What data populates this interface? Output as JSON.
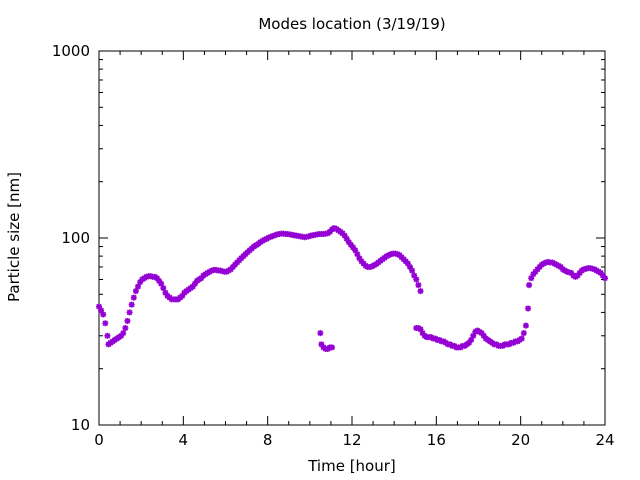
{
  "chart_data": {
    "type": "scatter",
    "title": "Modes location (3/19/19)",
    "xlabel": "Time [hour]",
    "ylabel": "Particle size [nm]",
    "xlim": [
      0,
      24
    ],
    "ylim": [
      10,
      1000
    ],
    "yscale": "log",
    "x_ticks": [
      0,
      4,
      8,
      12,
      16,
      20,
      24
    ],
    "y_ticks": [
      10,
      100,
      1000
    ],
    "grid": false,
    "marker": "star",
    "color": "#9400d3",
    "series": [
      {
        "points": [
          [
            0.0,
            43
          ],
          [
            0.1,
            41
          ],
          [
            0.2,
            39
          ],
          [
            0.3,
            35
          ],
          [
            0.4,
            30
          ],
          [
            0.45,
            27
          ],
          [
            0.55,
            27.5
          ],
          [
            0.65,
            28
          ],
          [
            0.75,
            28.5
          ],
          [
            0.85,
            29
          ],
          [
            0.95,
            29.5
          ],
          [
            1.05,
            30
          ],
          [
            1.15,
            31
          ],
          [
            1.25,
            33
          ],
          [
            1.35,
            36
          ],
          [
            1.45,
            40
          ],
          [
            1.55,
            44
          ],
          [
            1.65,
            48
          ],
          [
            1.75,
            52
          ],
          [
            1.85,
            55
          ],
          [
            1.95,
            58
          ],
          [
            2.05,
            60
          ],
          [
            2.15,
            61
          ],
          [
            2.25,
            62
          ],
          [
            2.35,
            62.5
          ],
          [
            2.45,
            62.5
          ],
          [
            2.55,
            62
          ],
          [
            2.65,
            62
          ],
          [
            2.75,
            61
          ],
          [
            2.85,
            59
          ],
          [
            2.95,
            57
          ],
          [
            3.05,
            54
          ],
          [
            3.15,
            51
          ],
          [
            3.25,
            49
          ],
          [
            3.35,
            48
          ],
          [
            3.45,
            47
          ],
          [
            3.55,
            47
          ],
          [
            3.65,
            47
          ],
          [
            3.75,
            47
          ],
          [
            3.85,
            48
          ],
          [
            3.95,
            49
          ],
          [
            4.05,
            51
          ],
          [
            4.15,
            52
          ],
          [
            4.25,
            53
          ],
          [
            4.35,
            54
          ],
          [
            4.45,
            55
          ],
          [
            4.55,
            57
          ],
          [
            4.65,
            59
          ],
          [
            4.75,
            60
          ],
          [
            4.85,
            61
          ],
          [
            4.95,
            63
          ],
          [
            5.05,
            64
          ],
          [
            5.15,
            65
          ],
          [
            5.25,
            66
          ],
          [
            5.35,
            67
          ],
          [
            5.45,
            67.5
          ],
          [
            5.55,
            67.5
          ],
          [
            5.65,
            67
          ],
          [
            5.75,
            67
          ],
          [
            5.85,
            66.5
          ],
          [
            5.95,
            66
          ],
          [
            6.05,
            66
          ],
          [
            6.15,
            67
          ],
          [
            6.25,
            68
          ],
          [
            6.35,
            70
          ],
          [
            6.45,
            72
          ],
          [
            6.55,
            74
          ],
          [
            6.65,
            76
          ],
          [
            6.75,
            78
          ],
          [
            6.85,
            80
          ],
          [
            6.95,
            82
          ],
          [
            7.05,
            84
          ],
          [
            7.15,
            86
          ],
          [
            7.25,
            88
          ],
          [
            7.35,
            90
          ],
          [
            7.45,
            91.5
          ],
          [
            7.55,
            93
          ],
          [
            7.65,
            95
          ],
          [
            7.75,
            96.5
          ],
          [
            7.85,
            98
          ],
          [
            7.95,
            99
          ],
          [
            8.05,
            100.5
          ],
          [
            8.15,
            101.5
          ],
          [
            8.25,
            102.5
          ],
          [
            8.35,
            103.5
          ],
          [
            8.45,
            104.5
          ],
          [
            8.55,
            105
          ],
          [
            8.65,
            105.5
          ],
          [
            8.75,
            105.5
          ],
          [
            8.85,
            105
          ],
          [
            8.95,
            105
          ],
          [
            9.05,
            104.5
          ],
          [
            9.15,
            104
          ],
          [
            9.25,
            103.5
          ],
          [
            9.35,
            103
          ],
          [
            9.45,
            102.5
          ],
          [
            9.55,
            102
          ],
          [
            9.65,
            101.5
          ],
          [
            9.75,
            101
          ],
          [
            9.85,
            101.5
          ],
          [
            9.95,
            102
          ],
          [
            10.05,
            103
          ],
          [
            10.15,
            103.5
          ],
          [
            10.25,
            104
          ],
          [
            10.35,
            104.5
          ],
          [
            10.45,
            105
          ],
          [
            10.55,
            105
          ],
          [
            10.65,
            105
          ],
          [
            10.75,
            105.5
          ],
          [
            10.85,
            106
          ],
          [
            10.95,
            108
          ],
          [
            11.05,
            111
          ],
          [
            11.15,
            113
          ],
          [
            11.25,
            112
          ],
          [
            11.35,
            110
          ],
          [
            11.45,
            108
          ],
          [
            11.55,
            106
          ],
          [
            11.65,
            103
          ],
          [
            11.75,
            99
          ],
          [
            11.85,
            95
          ],
          [
            11.95,
            92
          ],
          [
            12.05,
            89
          ],
          [
            12.15,
            86
          ],
          [
            12.25,
            82
          ],
          [
            12.35,
            78
          ],
          [
            12.45,
            75
          ],
          [
            12.55,
            73
          ],
          [
            12.65,
            71
          ],
          [
            12.75,
            70
          ],
          [
            12.85,
            70
          ],
          [
            12.95,
            70.5
          ],
          [
            13.05,
            71.5
          ],
          [
            13.15,
            72.5
          ],
          [
            13.25,
            74
          ],
          [
            13.35,
            75.5
          ],
          [
            13.45,
            77
          ],
          [
            13.55,
            78.5
          ],
          [
            13.65,
            80
          ],
          [
            13.75,
            81
          ],
          [
            13.85,
            82
          ],
          [
            13.95,
            82.5
          ],
          [
            14.05,
            82.5
          ],
          [
            14.15,
            82
          ],
          [
            14.25,
            81
          ],
          [
            14.35,
            79
          ],
          [
            14.45,
            77
          ],
          [
            14.55,
            75
          ],
          [
            14.65,
            73
          ],
          [
            14.75,
            70
          ],
          [
            14.85,
            67
          ],
          [
            14.95,
            63
          ],
          [
            15.05,
            60
          ],
          [
            15.15,
            56
          ],
          [
            15.25,
            52
          ],
          [
            10.5,
            31
          ],
          [
            10.55,
            27
          ],
          [
            10.65,
            26
          ],
          [
            10.75,
            25.5
          ],
          [
            10.85,
            25.5
          ],
          [
            10.95,
            26
          ],
          [
            11.05,
            26
          ],
          [
            15.05,
            33
          ],
          [
            15.15,
            33
          ],
          [
            15.25,
            32.5
          ],
          [
            15.35,
            31
          ],
          [
            15.45,
            30
          ],
          [
            15.55,
            29.5
          ],
          [
            15.65,
            29.5
          ],
          [
            15.75,
            29.5
          ],
          [
            15.85,
            29
          ],
          [
            15.95,
            29
          ],
          [
            16.05,
            28.5
          ],
          [
            16.15,
            28.5
          ],
          [
            16.25,
            28
          ],
          [
            16.35,
            28
          ],
          [
            16.45,
            27.5
          ],
          [
            16.55,
            27
          ],
          [
            16.65,
            27
          ],
          [
            16.75,
            26.5
          ],
          [
            16.85,
            26.5
          ],
          [
            16.95,
            26
          ],
          [
            17.05,
            26
          ],
          [
            17.15,
            26
          ],
          [
            17.25,
            26.5
          ],
          [
            17.35,
            26.5
          ],
          [
            17.45,
            27
          ],
          [
            17.55,
            27.5
          ],
          [
            17.65,
            28.5
          ],
          [
            17.75,
            30
          ],
          [
            17.85,
            31.5
          ],
          [
            17.95,
            32
          ],
          [
            18.05,
            31.5
          ],
          [
            18.15,
            31
          ],
          [
            18.25,
            30
          ],
          [
            18.35,
            29
          ],
          [
            18.45,
            28.5
          ],
          [
            18.55,
            28
          ],
          [
            18.65,
            27.5
          ],
          [
            18.75,
            27
          ],
          [
            18.85,
            27
          ],
          [
            18.95,
            26.5
          ],
          [
            19.05,
            26.5
          ],
          [
            19.15,
            26.5
          ],
          [
            19.25,
            27
          ],
          [
            19.35,
            27
          ],
          [
            19.45,
            27
          ],
          [
            19.55,
            27.5
          ],
          [
            19.65,
            27.5
          ],
          [
            19.75,
            28
          ],
          [
            19.85,
            28
          ],
          [
            19.95,
            28.5
          ],
          [
            20.05,
            29
          ],
          [
            20.15,
            31
          ],
          [
            20.25,
            34
          ],
          [
            20.35,
            42
          ],
          [
            20.4,
            56
          ],
          [
            20.5,
            61
          ],
          [
            20.6,
            64
          ],
          [
            20.7,
            66
          ],
          [
            20.8,
            68
          ],
          [
            20.9,
            70
          ],
          [
            21.0,
            72
          ],
          [
            21.1,
            73
          ],
          [
            21.2,
            74
          ],
          [
            21.3,
            74.5
          ],
          [
            21.4,
            74
          ],
          [
            21.5,
            74
          ],
          [
            21.6,
            73
          ],
          [
            21.7,
            72
          ],
          [
            21.8,
            71
          ],
          [
            21.9,
            70
          ],
          [
            22.0,
            68
          ],
          [
            22.1,
            67
          ],
          [
            22.2,
            66
          ],
          [
            22.3,
            65.5
          ],
          [
            22.4,
            65
          ],
          [
            22.5,
            63
          ],
          [
            22.6,
            62
          ],
          [
            22.7,
            63
          ],
          [
            22.8,
            65
          ],
          [
            22.9,
            67
          ],
          [
            23.0,
            68
          ],
          [
            23.1,
            68.5
          ],
          [
            23.2,
            69
          ],
          [
            23.3,
            69
          ],
          [
            23.4,
            68.5
          ],
          [
            23.5,
            68
          ],
          [
            23.6,
            67
          ],
          [
            23.7,
            66
          ],
          [
            23.8,
            65
          ],
          [
            23.9,
            63
          ],
          [
            24.0,
            61
          ]
        ]
      }
    ]
  }
}
